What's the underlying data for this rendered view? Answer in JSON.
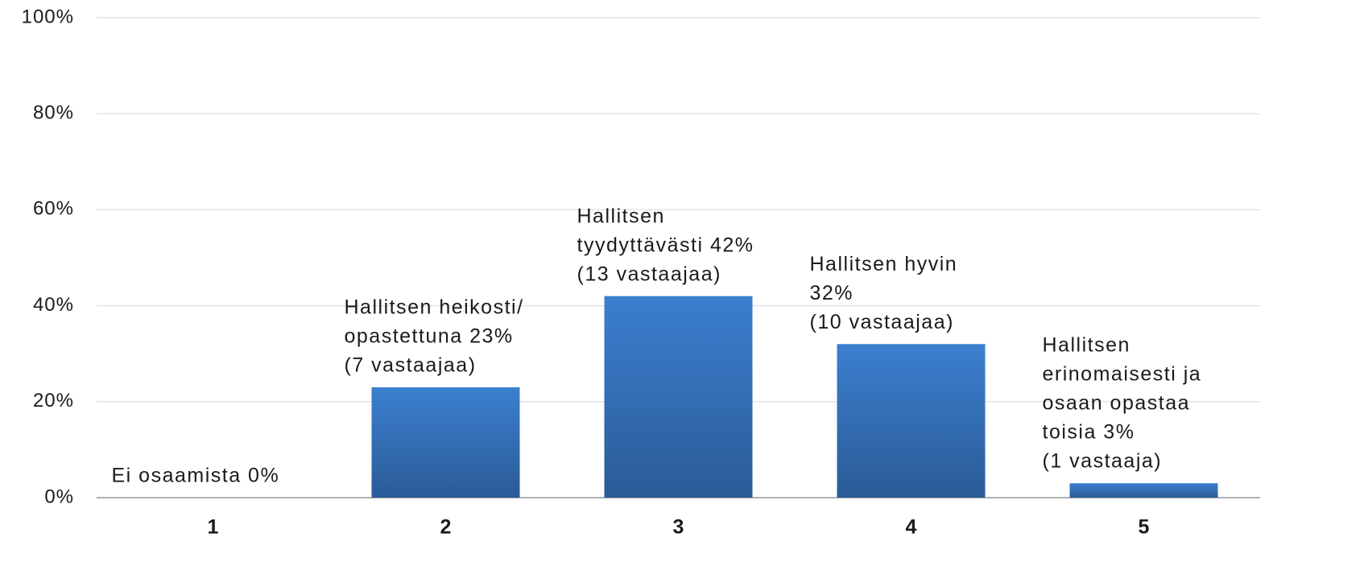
{
  "chart_data": {
    "type": "bar",
    "categories": [
      "1",
      "2",
      "3",
      "4",
      "5"
    ],
    "values": [
      0,
      23,
      42,
      32,
      3
    ],
    "value_labels": [
      [
        "Ei osaamista 0%"
      ],
      [
        "Hallitsen heikosti/",
        "opastettuna 23%",
        "(7 vastaajaa)"
      ],
      [
        "Hallitsen",
        "tyydyttävästi 42%",
        "(13 vastaajaa)"
      ],
      [
        "Hallitsen hyvin",
        "32%",
        "(10 vastaajaa)"
      ],
      [
        "Hallitsen",
        "erinomaisesti ja",
        "osaan opastaa",
        "toisia 3%",
        "(1 vastaaja)"
      ]
    ],
    "color": "#3a7bcb",
    "ylim": [
      0,
      100
    ],
    "yticks": [
      {
        "value": 0,
        "label": "0%"
      },
      {
        "value": 20,
        "label": "20%"
      },
      {
        "value": 40,
        "label": "40%"
      },
      {
        "value": 60,
        "label": "60%"
      },
      {
        "value": 80,
        "label": "80%"
      },
      {
        "value": 100,
        "label": "100%"
      }
    ],
    "grid": true
  }
}
